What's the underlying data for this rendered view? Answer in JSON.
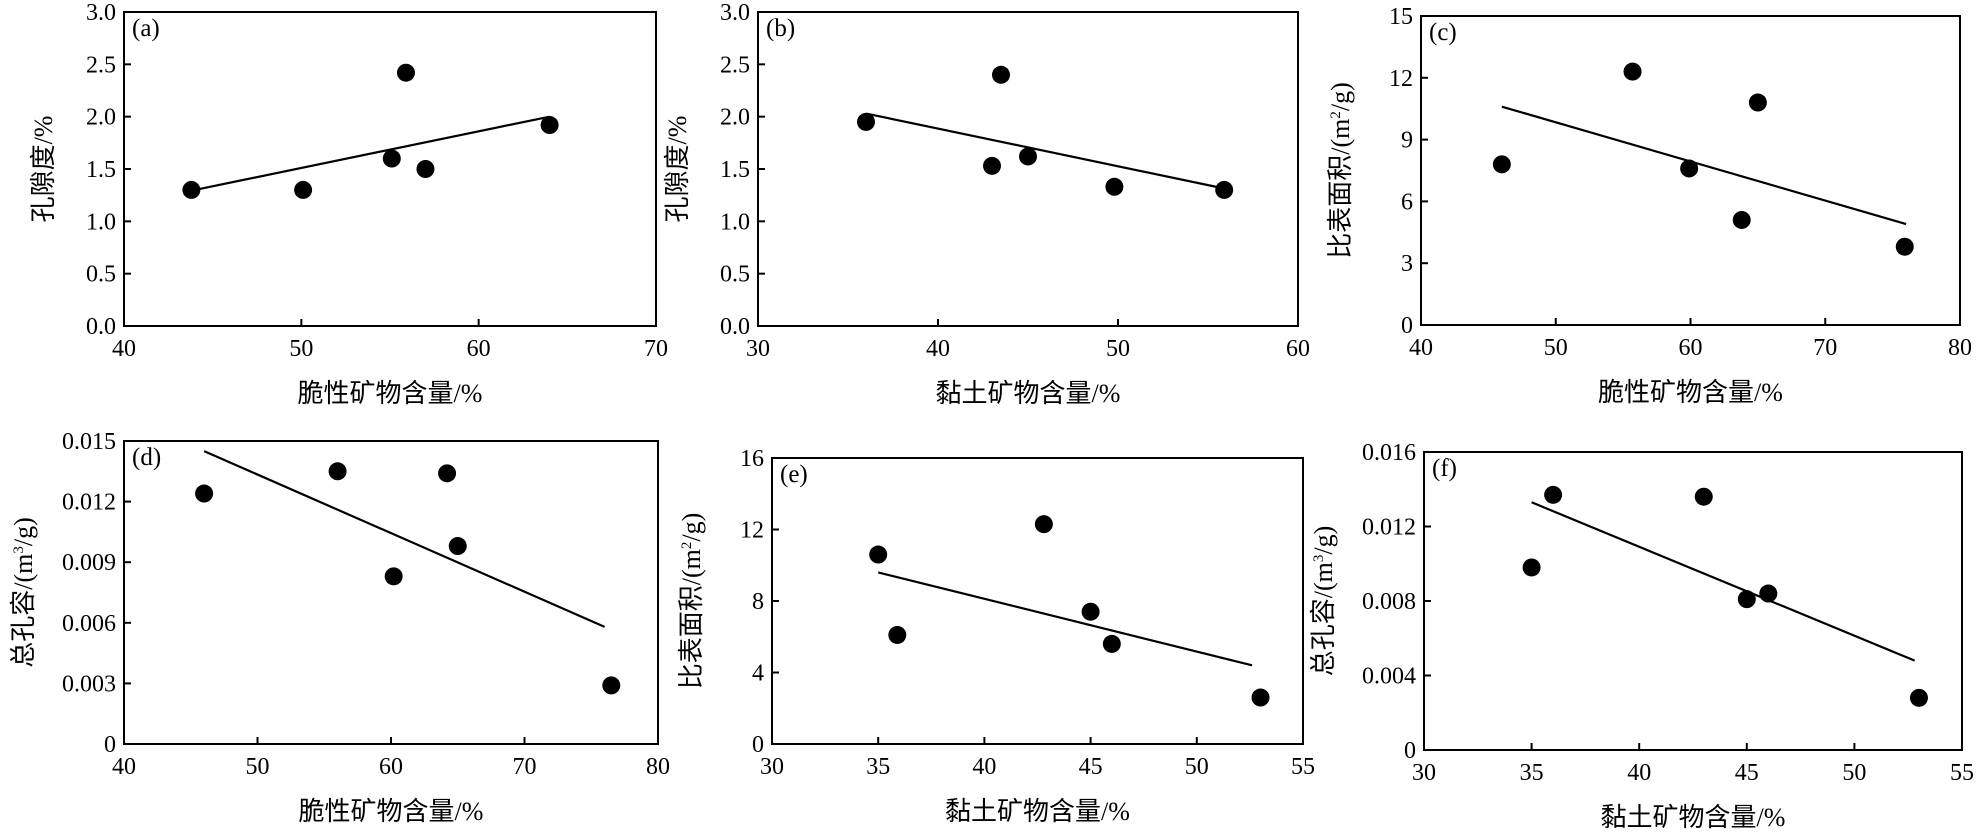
{
  "chart_data": [
    {
      "type": "scatter",
      "label": "(a)",
      "xlabel": "脆性矿物含量/%",
      "ylabel": "孔隙度/%",
      "xlim": [
        40,
        70
      ],
      "ylim": [
        0,
        3.0
      ],
      "xticks": [
        40,
        50,
        60,
        70
      ],
      "yticks": [
        0,
        0.5,
        1.0,
        1.5,
        2.0,
        2.5,
        3.0
      ],
      "ytick_labels": [
        "0.0",
        "0.5",
        "1.0",
        "1.5",
        "2.0",
        "2.5",
        "3.0"
      ],
      "points": [
        [
          43.8,
          1.3
        ],
        [
          50.1,
          1.3
        ],
        [
          55.1,
          1.6
        ],
        [
          55.9,
          2.42
        ],
        [
          57.0,
          1.5
        ],
        [
          64.0,
          1.92
        ]
      ],
      "trendline": [
        [
          44.0,
          1.3
        ],
        [
          64.0,
          2.0
        ]
      ]
    },
    {
      "type": "scatter",
      "label": "(b)",
      "xlabel": "黏土矿物含量/%",
      "ylabel": "孔隙度/%",
      "xlim": [
        30,
        60
      ],
      "ylim": [
        0,
        3.0
      ],
      "xticks": [
        30,
        40,
        50,
        60
      ],
      "yticks": [
        0,
        0.5,
        1.0,
        1.5,
        2.0,
        2.5,
        3.0
      ],
      "ytick_labels": [
        "0.0",
        "0.5",
        "1.0",
        "1.5",
        "2.0",
        "2.5",
        "3.0"
      ],
      "points": [
        [
          36.0,
          1.95
        ],
        [
          43.0,
          1.53
        ],
        [
          43.5,
          2.4
        ],
        [
          45.0,
          1.62
        ],
        [
          49.8,
          1.33
        ],
        [
          55.9,
          1.3
        ]
      ],
      "trendline": [
        [
          36.0,
          2.03
        ],
        [
          56.0,
          1.31
        ]
      ]
    },
    {
      "type": "scatter",
      "label": "(c)",
      "xlabel": "脆性矿物含量/%",
      "ylabel": "比表面积/(m²/g)",
      "xlim": [
        40,
        80
      ],
      "ylim": [
        0,
        15
      ],
      "xticks": [
        40,
        50,
        60,
        70,
        80
      ],
      "yticks": [
        0,
        3,
        6,
        9,
        12,
        15
      ],
      "ytick_labels": [
        "0",
        "3",
        "6",
        "9",
        "12",
        "15"
      ],
      "points": [
        [
          46.0,
          7.8
        ],
        [
          55.7,
          12.3
        ],
        [
          59.9,
          7.6
        ],
        [
          63.8,
          5.1
        ],
        [
          65.0,
          10.8
        ],
        [
          75.9,
          3.8
        ]
      ],
      "trendline": [
        [
          46.0,
          10.6
        ],
        [
          76.0,
          4.9
        ]
      ]
    },
    {
      "type": "scatter",
      "label": "(d)",
      "xlabel": "脆性矿物含量/%",
      "ylabel": "总孔容/(m³/g)",
      "xlim": [
        40,
        80
      ],
      "ylim": [
        0,
        0.015
      ],
      "xticks": [
        40,
        50,
        60,
        70,
        80
      ],
      "yticks": [
        0,
        0.003,
        0.006,
        0.009,
        0.012,
        0.015
      ],
      "ytick_labels": [
        "0",
        "0.003",
        "0.006",
        "0.009",
        "0.012",
        "0.015"
      ],
      "points": [
        [
          46.0,
          0.0124
        ],
        [
          56.0,
          0.0135
        ],
        [
          60.2,
          0.0083
        ],
        [
          64.2,
          0.0134
        ],
        [
          65.0,
          0.0098
        ],
        [
          76.5,
          0.0029
        ]
      ],
      "trendline": [
        [
          46.0,
          0.0145
        ],
        [
          76.0,
          0.0058
        ]
      ]
    },
    {
      "type": "scatter",
      "label": "(e)",
      "xlabel": "黏土矿物含量/%",
      "ylabel": "比表面积/(m²/g)",
      "xlim": [
        30,
        55
      ],
      "ylim": [
        0,
        16
      ],
      "xticks": [
        30,
        35,
        40,
        45,
        50,
        55
      ],
      "yticks": [
        0,
        4,
        8,
        12,
        16
      ],
      "ytick_labels": [
        "0",
        "4",
        "8",
        "12",
        "16"
      ],
      "points": [
        [
          35.0,
          10.6
        ],
        [
          35.9,
          6.1
        ],
        [
          42.8,
          12.3
        ],
        [
          45.0,
          7.4
        ],
        [
          46.0,
          5.6
        ],
        [
          53.0,
          2.6
        ]
      ],
      "trendline": [
        [
          35.0,
          9.6
        ],
        [
          52.6,
          4.4
        ]
      ]
    },
    {
      "type": "scatter",
      "label": "(f)",
      "xlabel": "黏土矿物含量/%",
      "ylabel": "总孔容/(m³/g)",
      "xlim": [
        30,
        55
      ],
      "ylim": [
        0,
        0.016
      ],
      "xticks": [
        30,
        35,
        40,
        45,
        50,
        55
      ],
      "yticks": [
        0,
        0.004,
        0.008,
        0.012,
        0.016
      ],
      "ytick_labels": [
        "0",
        "0.004",
        "0.008",
        "0.012",
        "0.016"
      ],
      "points": [
        [
          35.0,
          0.0098
        ],
        [
          36.0,
          0.0137
        ],
        [
          43.0,
          0.0136
        ],
        [
          45.0,
          0.0081
        ],
        [
          46.0,
          0.0084
        ],
        [
          53.0,
          0.0028
        ]
      ],
      "trendline": [
        [
          35.0,
          0.0133
        ],
        [
          52.8,
          0.0048
        ]
      ]
    }
  ]
}
